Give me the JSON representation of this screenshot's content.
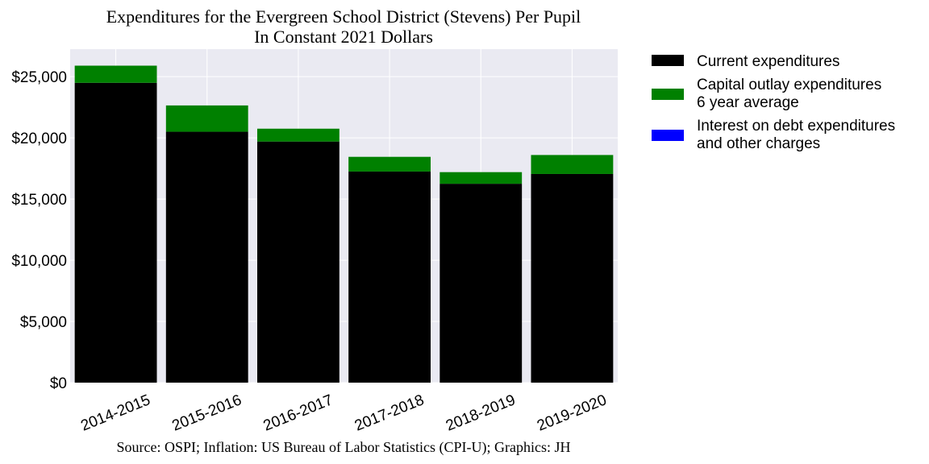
{
  "chart_data": {
    "type": "bar",
    "stacked": true,
    "title": "Expenditures for the Evergreen School District (Stevens) Per Pupil",
    "subtitle": "In Constant 2021 Dollars",
    "source": "Source: OSPI; Inflation: US Bureau of Labor Statistics (CPI-U); Graphics: JH",
    "categories": [
      "2014-2015",
      "2015-2016",
      "2016-2017",
      "2017-2018",
      "2018-2019",
      "2019-2020"
    ],
    "series": [
      {
        "name": "Current expenditures",
        "color": "#000000",
        "values": [
          24500,
          20500,
          19700,
          17250,
          16250,
          17050
        ]
      },
      {
        "name": "Capital outlay expenditures\n6 year average",
        "color": "#008000",
        "values": [
          1400,
          2150,
          1050,
          1200,
          950,
          1550
        ]
      },
      {
        "name": "Interest on debt expenditures\nand other charges",
        "color": "#0000ff",
        "values": [
          0,
          0,
          0,
          0,
          0,
          0
        ]
      }
    ],
    "ylim": [
      0,
      27250
    ],
    "yticks": [
      0,
      5000,
      10000,
      15000,
      20000,
      25000
    ],
    "ytick_labels": [
      "$0",
      "$5,000",
      "$10,000",
      "$15,000",
      "$20,000",
      "$25,000"
    ],
    "xlabel": "",
    "ylabel": "",
    "grid": true,
    "legend_position": "outside-right"
  }
}
